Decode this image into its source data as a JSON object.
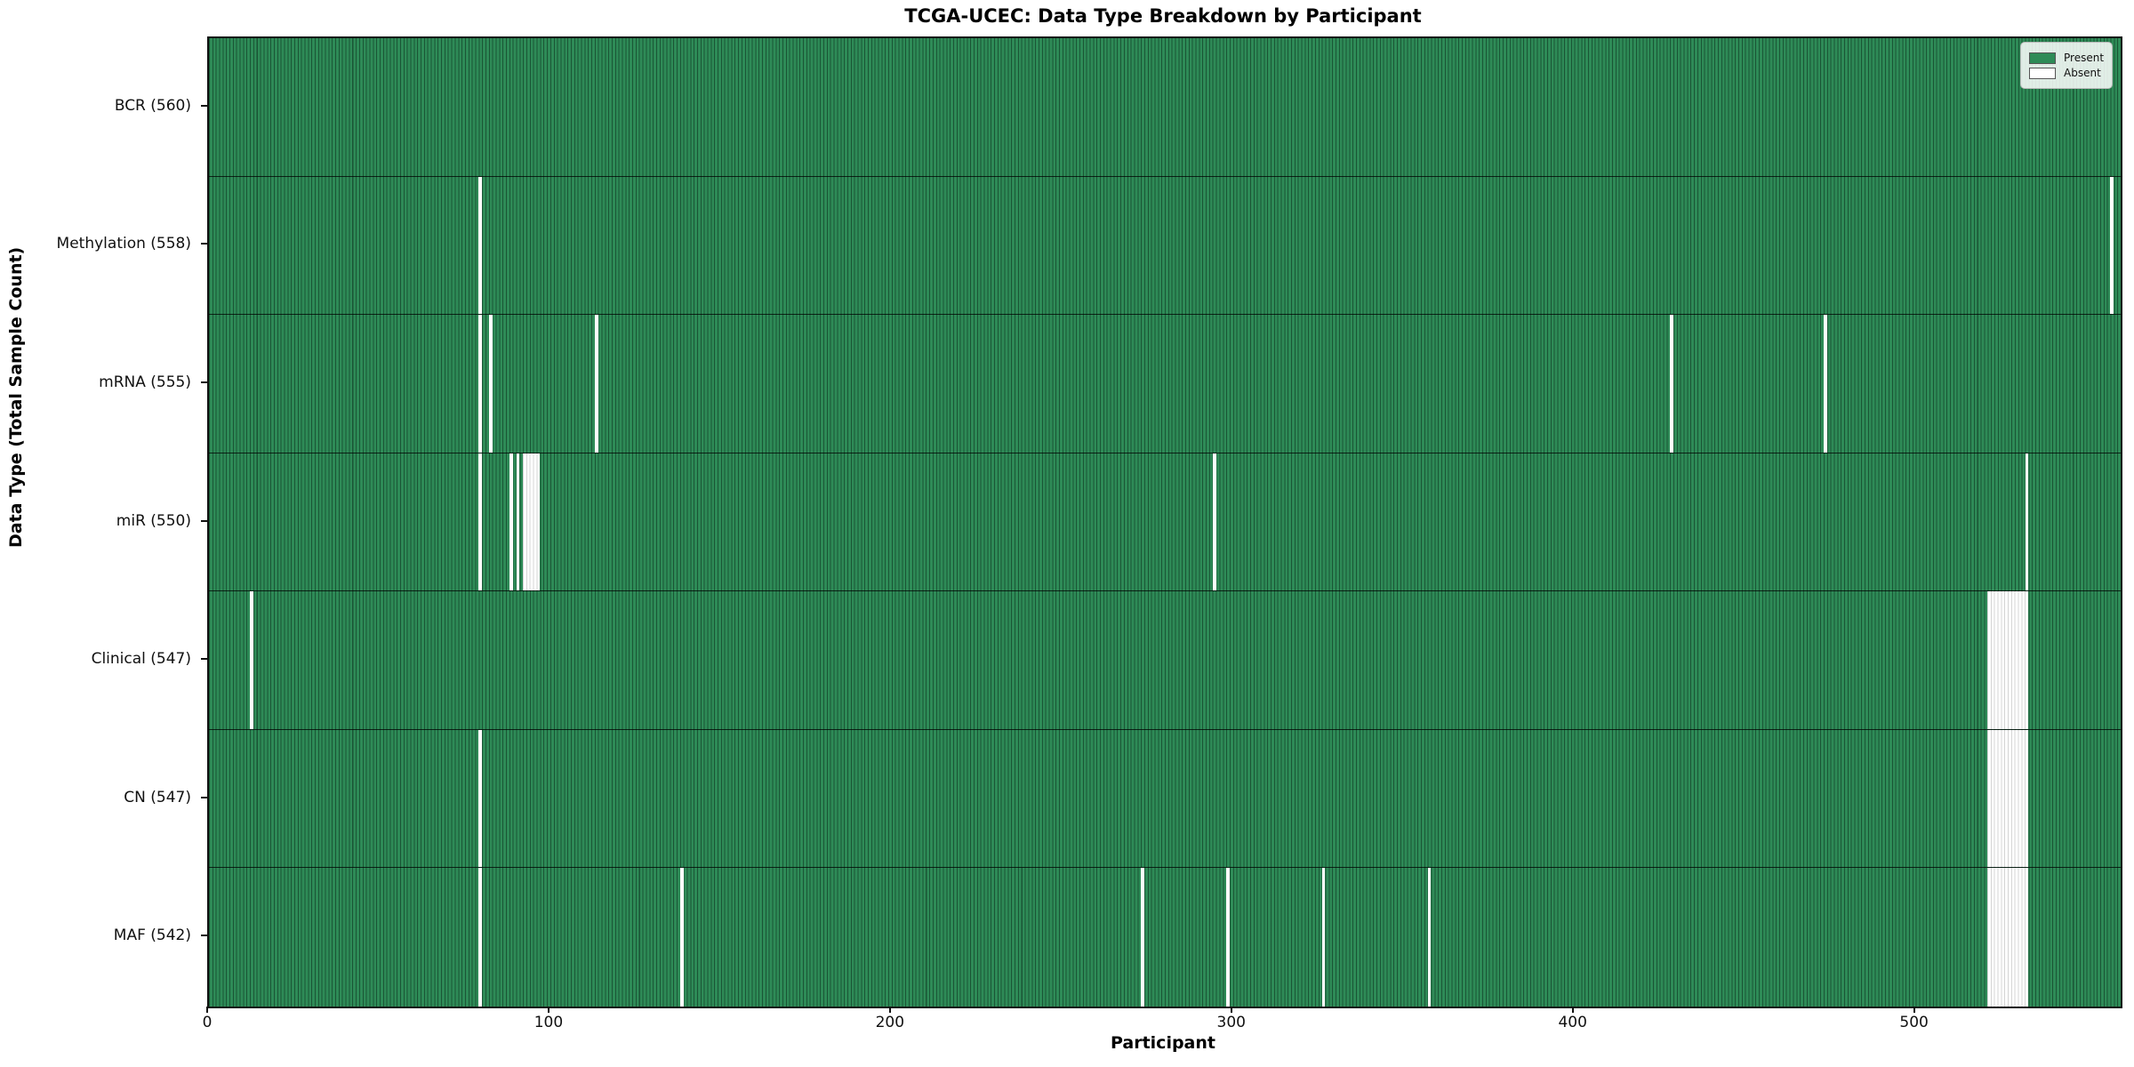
{
  "chart_data": {
    "type": "heatmap",
    "title": "TCGA-UCEC: Data Type Breakdown by Participant",
    "xlabel": "Participant",
    "ylabel": "Data Type (Total Sample Count)",
    "x_ticks": [
      0,
      100,
      200,
      300,
      400,
      500
    ],
    "x_max": 560,
    "grid": false,
    "legend": {
      "position": "upper right",
      "entries": [
        {
          "label": "Present",
          "color": "#2e8b57"
        },
        {
          "label": "Absent",
          "color": "#ffffff"
        }
      ]
    },
    "colors": {
      "present": "#2e8b57",
      "absent": "#ffffff",
      "cell_edge": "rgba(10,40,25,0.55)",
      "absent_cell_edge": "#d4d4d4",
      "row_separator": "rgba(0,0,0,0.75)"
    },
    "rows": [
      {
        "label": "BCR (560)",
        "data_type": "BCR",
        "present_count": 560,
        "absent_ranges": []
      },
      {
        "label": "Methylation (558)",
        "data_type": "Methylation",
        "present_count": 558,
        "absent_ranges": [
          [
            79,
            1
          ],
          [
            557,
            1
          ]
        ]
      },
      {
        "label": "mRNA (555)",
        "data_type": "mRNA",
        "present_count": 555,
        "absent_ranges": [
          [
            79,
            1
          ],
          [
            82,
            1
          ],
          [
            113,
            1
          ],
          [
            428,
            1
          ],
          [
            473,
            1
          ]
        ]
      },
      {
        "label": "miR (550)",
        "data_type": "miR",
        "present_count": 550,
        "absent_ranges": [
          [
            79,
            1
          ],
          [
            88,
            1
          ],
          [
            90,
            1
          ],
          [
            92,
            5
          ],
          [
            294,
            1
          ],
          [
            532,
            1
          ]
        ]
      },
      {
        "label": "Clinical (547)",
        "data_type": "Clinical",
        "present_count": 547,
        "absent_ranges": [
          [
            12,
            1
          ],
          [
            521,
            12
          ]
        ]
      },
      {
        "label": "CN (547)",
        "data_type": "CN",
        "present_count": 547,
        "absent_ranges": [
          [
            79,
            1
          ],
          [
            521,
            12
          ]
        ]
      },
      {
        "label": "MAF (542)",
        "data_type": "MAF",
        "present_count": 542,
        "absent_ranges": [
          [
            79,
            1
          ],
          [
            138,
            1
          ],
          [
            273,
            1
          ],
          [
            298,
            1
          ],
          [
            326,
            1
          ],
          [
            357,
            1
          ],
          [
            521,
            12
          ]
        ]
      }
    ]
  }
}
